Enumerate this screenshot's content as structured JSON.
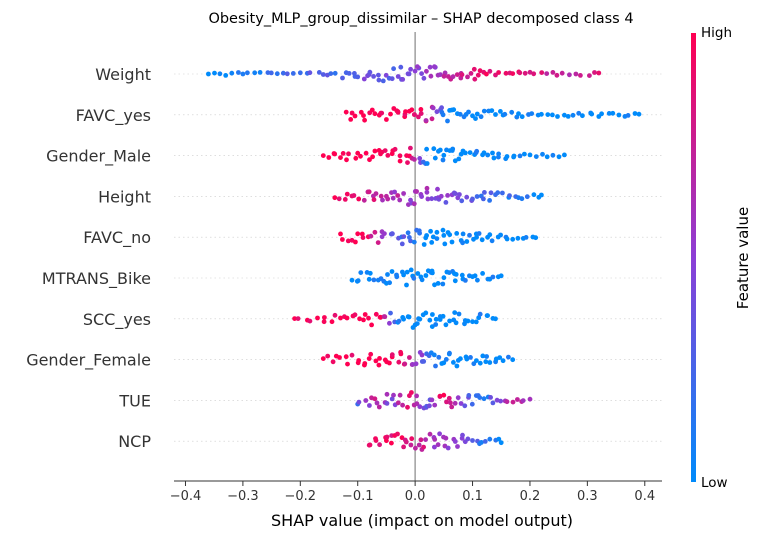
{
  "chart_data": {
    "type": "scatter",
    "subtype": "shap-beeswarm",
    "title": "Obesity_MLP_group_dissimilar – SHAP decomposed class 4",
    "xlabel": "SHAP value (impact on model output)",
    "xlim": [
      -0.42,
      0.43
    ],
    "xticks": [
      -0.4,
      -0.3,
      -0.2,
      -0.1,
      0.0,
      0.1,
      0.2,
      0.3,
      0.4
    ],
    "xtick_labels": [
      "−0.4",
      "−0.3",
      "−0.2",
      "−0.1",
      "0.0",
      "0.1",
      "0.2",
      "0.3",
      "0.4"
    ],
    "colorbar": {
      "label": "Feature value",
      "high_label": "High",
      "low_label": "Low",
      "high_color": "#ff0052",
      "low_color": "#008bfb"
    },
    "features": [
      {
        "name": "Weight",
        "points": [
          {
            "x": -0.36,
            "v": 0.0
          },
          {
            "x": -0.34,
            "v": 0.05
          },
          {
            "x": -0.3,
            "v": 0.1
          },
          {
            "x": -0.27,
            "v": 0.05
          },
          {
            "x": -0.24,
            "v": 0.15
          },
          {
            "x": -0.2,
            "v": 0.2
          },
          {
            "x": -0.16,
            "v": 0.3
          },
          {
            "x": -0.12,
            "v": 0.25
          },
          {
            "x": -0.08,
            "v": 0.4
          },
          {
            "x": -0.04,
            "v": 0.35
          },
          {
            "x": 0.0,
            "v": 0.5
          },
          {
            "x": 0.04,
            "v": 0.6
          },
          {
            "x": 0.08,
            "v": 0.7
          },
          {
            "x": 0.11,
            "v": 0.9
          },
          {
            "x": 0.14,
            "v": 0.85
          },
          {
            "x": 0.17,
            "v": 0.95
          },
          {
            "x": 0.2,
            "v": 0.8
          },
          {
            "x": 0.24,
            "v": 0.75
          },
          {
            "x": 0.28,
            "v": 0.7
          },
          {
            "x": 0.32,
            "v": 0.9
          }
        ]
      },
      {
        "name": "FAVC_yes",
        "points": [
          {
            "x": -0.12,
            "v": 1.0
          },
          {
            "x": -0.09,
            "v": 1.0
          },
          {
            "x": -0.07,
            "v": 1.0
          },
          {
            "x": -0.05,
            "v": 1.0
          },
          {
            "x": -0.03,
            "v": 1.0
          },
          {
            "x": -0.01,
            "v": 1.0
          },
          {
            "x": 0.01,
            "v": 1.0
          },
          {
            "x": 0.06,
            "v": 0.0
          },
          {
            "x": 0.1,
            "v": 0.0
          },
          {
            "x": 0.14,
            "v": 0.0
          },
          {
            "x": 0.18,
            "v": 0.0
          },
          {
            "x": 0.22,
            "v": 0.0
          },
          {
            "x": 0.26,
            "v": 0.0
          },
          {
            "x": 0.32,
            "v": 0.0
          },
          {
            "x": 0.39,
            "v": 0.0
          }
        ]
      },
      {
        "name": "Gender_Male",
        "points": [
          {
            "x": -0.16,
            "v": 1.0
          },
          {
            "x": -0.13,
            "v": 1.0
          },
          {
            "x": -0.1,
            "v": 1.0
          },
          {
            "x": -0.07,
            "v": 1.0
          },
          {
            "x": -0.04,
            "v": 1.0
          },
          {
            "x": -0.01,
            "v": 1.0
          },
          {
            "x": 0.02,
            "v": 0.0
          },
          {
            "x": 0.05,
            "v": 0.0
          },
          {
            "x": 0.08,
            "v": 0.0
          },
          {
            "x": 0.12,
            "v": 0.0
          },
          {
            "x": 0.16,
            "v": 0.0
          },
          {
            "x": 0.2,
            "v": 0.0
          },
          {
            "x": 0.23,
            "v": 0.0
          },
          {
            "x": 0.26,
            "v": 0.0
          }
        ]
      },
      {
        "name": "Height",
        "points": [
          {
            "x": -0.14,
            "v": 1.0
          },
          {
            "x": -0.11,
            "v": 0.9
          },
          {
            "x": -0.08,
            "v": 0.8
          },
          {
            "x": -0.05,
            "v": 0.7
          },
          {
            "x": -0.02,
            "v": 0.6
          },
          {
            "x": 0.01,
            "v": 0.55
          },
          {
            "x": 0.04,
            "v": 0.5
          },
          {
            "x": 0.07,
            "v": 0.4
          },
          {
            "x": 0.1,
            "v": 0.3
          },
          {
            "x": 0.14,
            "v": 0.2
          },
          {
            "x": 0.18,
            "v": 0.1
          },
          {
            "x": 0.22,
            "v": 0.0
          }
        ]
      },
      {
        "name": "FAVC_no",
        "points": [
          {
            "x": -0.13,
            "v": 1.0
          },
          {
            "x": -0.1,
            "v": 1.0
          },
          {
            "x": -0.07,
            "v": 0.8
          },
          {
            "x": -0.04,
            "v": 0.3
          },
          {
            "x": -0.01,
            "v": 0.2
          },
          {
            "x": 0.02,
            "v": 0.0
          },
          {
            "x": 0.05,
            "v": 0.0
          },
          {
            "x": 0.09,
            "v": 0.0
          },
          {
            "x": 0.13,
            "v": 0.0
          },
          {
            "x": 0.17,
            "v": 0.0
          },
          {
            "x": 0.21,
            "v": 0.0
          }
        ]
      },
      {
        "name": "MTRANS_Bike",
        "points": [
          {
            "x": -0.11,
            "v": 0.0
          },
          {
            "x": -0.08,
            "v": 0.0
          },
          {
            "x": -0.05,
            "v": 0.0
          },
          {
            "x": -0.02,
            "v": 0.0
          },
          {
            "x": 0.01,
            "v": 0.0
          },
          {
            "x": 0.04,
            "v": 0.0
          },
          {
            "x": 0.07,
            "v": 0.0
          },
          {
            "x": 0.1,
            "v": 0.0
          },
          {
            "x": 0.13,
            "v": 0.0
          },
          {
            "x": 0.15,
            "v": 0.0
          }
        ]
      },
      {
        "name": "SCC_yes",
        "points": [
          {
            "x": -0.21,
            "v": 1.0
          },
          {
            "x": -0.17,
            "v": 1.0
          },
          {
            "x": -0.13,
            "v": 1.0
          },
          {
            "x": -0.09,
            "v": 1.0
          },
          {
            "x": -0.06,
            "v": 1.0
          },
          {
            "x": -0.03,
            "v": 0.0
          },
          {
            "x": 0.0,
            "v": 0.0
          },
          {
            "x": 0.03,
            "v": 0.0
          },
          {
            "x": 0.06,
            "v": 0.0
          },
          {
            "x": 0.1,
            "v": 0.0
          },
          {
            "x": 0.14,
            "v": 0.0
          }
        ]
      },
      {
        "name": "Gender_Female",
        "points": [
          {
            "x": -0.16,
            "v": 1.0
          },
          {
            "x": -0.12,
            "v": 1.0
          },
          {
            "x": -0.08,
            "v": 1.0
          },
          {
            "x": -0.04,
            "v": 1.0
          },
          {
            "x": -0.01,
            "v": 0.8
          },
          {
            "x": 0.02,
            "v": 0.2
          },
          {
            "x": 0.05,
            "v": 0.0
          },
          {
            "x": 0.09,
            "v": 0.0
          },
          {
            "x": 0.13,
            "v": 0.0
          },
          {
            "x": 0.17,
            "v": 0.0
          }
        ]
      },
      {
        "name": "TUE",
        "points": [
          {
            "x": -0.1,
            "v": 0.2
          },
          {
            "x": -0.07,
            "v": 0.8
          },
          {
            "x": -0.04,
            "v": 0.4
          },
          {
            "x": -0.01,
            "v": 0.9
          },
          {
            "x": 0.02,
            "v": 0.3
          },
          {
            "x": 0.05,
            "v": 1.0
          },
          {
            "x": 0.08,
            "v": 0.5
          },
          {
            "x": 0.12,
            "v": 0.1
          },
          {
            "x": 0.16,
            "v": 0.7
          },
          {
            "x": 0.2,
            "v": 0.6
          }
        ]
      },
      {
        "name": "NCP",
        "points": [
          {
            "x": -0.08,
            "v": 0.9
          },
          {
            "x": -0.05,
            "v": 1.0
          },
          {
            "x": -0.02,
            "v": 0.85
          },
          {
            "x": 0.01,
            "v": 0.8
          },
          {
            "x": 0.04,
            "v": 0.6
          },
          {
            "x": 0.07,
            "v": 0.5
          },
          {
            "x": 0.1,
            "v": 0.3
          },
          {
            "x": 0.13,
            "v": 0.1
          },
          {
            "x": 0.15,
            "v": 0.0
          }
        ]
      }
    ]
  }
}
